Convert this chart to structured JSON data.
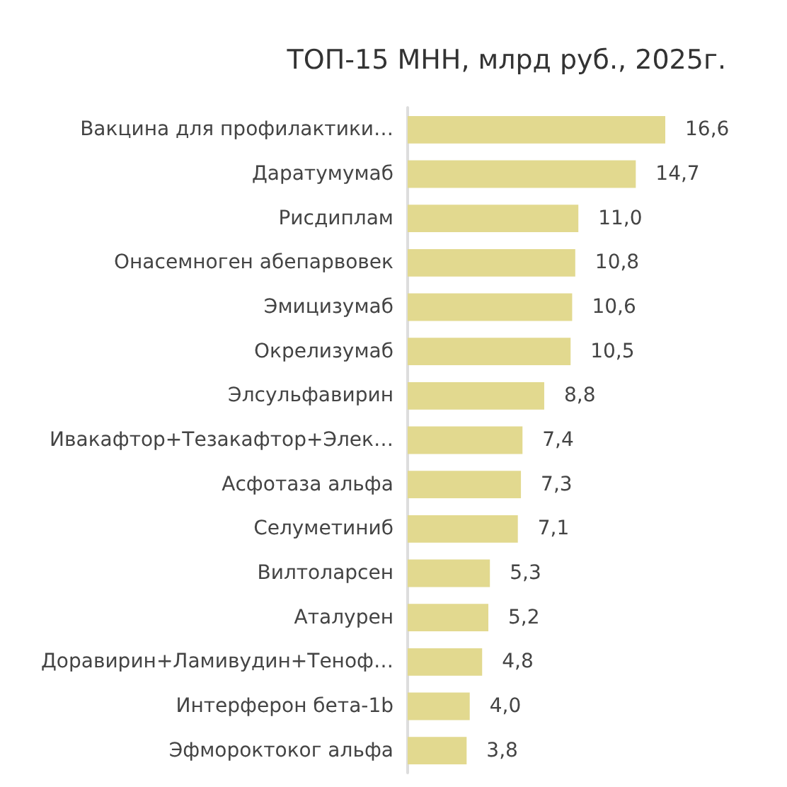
{
  "chart_data": {
    "type": "bar",
    "orientation": "horizontal",
    "title": "ТОП-15 МНН, млрд руб., 2025г.",
    "categories": [
      "Вакцина для профилактики…",
      "Даратумумаб",
      "Рисдиплам",
      "Онасемноген абепарвовек",
      "Эмицизумаб",
      "Окрелизумаб",
      "Элсульфавирин",
      "Ивакафтор+Тезакафтор+Элек…",
      "Асфотаза альфа",
      "Селуметиниб",
      "Вилтоларсен",
      "Аталурен",
      "Доравирин+Ламивудин+Теноф…",
      "Интерферон бета-1b",
      "Эфмороктоког альфа"
    ],
    "values": [
      16.6,
      14.7,
      11.0,
      10.8,
      10.6,
      10.5,
      8.8,
      7.4,
      7.3,
      7.1,
      5.3,
      5.2,
      4.8,
      4.0,
      3.8
    ],
    "value_labels": [
      "16,6",
      "14,7",
      "11,0",
      "10,8",
      "10,6",
      "10,5",
      "8,8",
      "7,4",
      "7,3",
      "7,1",
      "5,3",
      "5,2",
      "4,8",
      "4,0",
      "3,8"
    ],
    "color": "#e2d98f"
  }
}
